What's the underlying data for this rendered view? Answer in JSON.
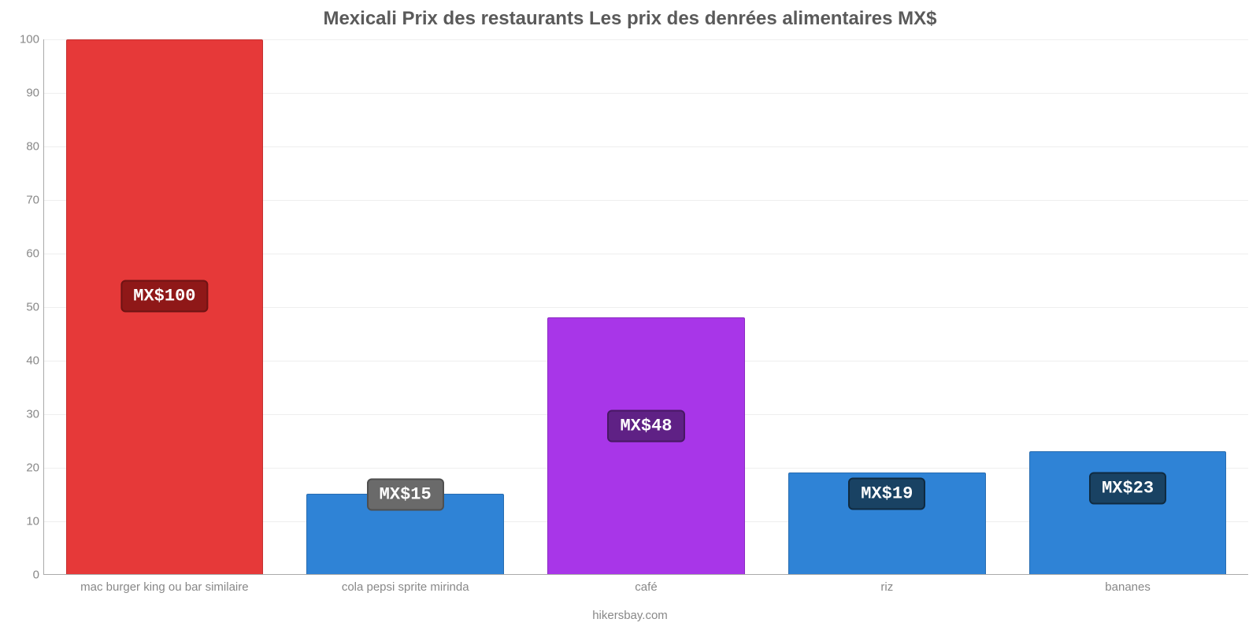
{
  "chart": {
    "type": "bar",
    "title": "Mexicali Prix des restaurants Les prix des denrées alimentaires MX$",
    "title_fontsize": 24,
    "title_color": "#5a5a5a",
    "caption": "hikersbay.com",
    "caption_fontsize": 15,
    "caption_color": "#888888",
    "background_color": "#ffffff",
    "plot": {
      "ylim": [
        0,
        100
      ],
      "ytick_step": 10,
      "grid_color": "#eeeeee",
      "axis_color": "#aaaaaa",
      "tick_label_color": "#888888",
      "tick_label_fontsize": 15
    },
    "bar_width_ratio": 0.82,
    "xlabel_fontsize": 15,
    "value_badge_fontsize": 22,
    "bars": [
      {
        "category": "mac burger king ou bar similaire",
        "value": 100,
        "value_label": "MX$100",
        "bar_color": "#e63939",
        "bar_border_color": "#c43030",
        "badge_bg": "#8f1818",
        "badge_border": "#6e1313",
        "badge_top_pct": 48
      },
      {
        "category": "cola pepsi sprite mirinda",
        "value": 15,
        "value_label": "MX$15",
        "bar_color": "#2f83d6",
        "bar_border_color": "#276cb0",
        "badge_bg": "#6a6a6a",
        "badge_border": "#4f4f4f",
        "badge_top_pct": 0
      },
      {
        "category": "café",
        "value": 48,
        "value_label": "MX$48",
        "bar_color": "#a836e8",
        "bar_border_color": "#8c2bc2",
        "badge_bg": "#5f2185",
        "badge_border": "#471863",
        "badge_top_pct": 42
      },
      {
        "category": "riz",
        "value": 19,
        "value_label": "MX$19",
        "bar_color": "#2f83d6",
        "bar_border_color": "#276cb0",
        "badge_bg": "#194263",
        "badge_border": "#0f2a40",
        "badge_top_pct": 20
      },
      {
        "category": "bananes",
        "value": 23,
        "value_label": "MX$23",
        "bar_color": "#2f83d6",
        "bar_border_color": "#276cb0",
        "badge_bg": "#194263",
        "badge_border": "#0f2a40",
        "badge_top_pct": 30
      }
    ],
    "yticks": [
      {
        "v": 0,
        "label": "0"
      },
      {
        "v": 10,
        "label": "10"
      },
      {
        "v": 20,
        "label": "20"
      },
      {
        "v": 30,
        "label": "30"
      },
      {
        "v": 40,
        "label": "40"
      },
      {
        "v": 50,
        "label": "50"
      },
      {
        "v": 60,
        "label": "60"
      },
      {
        "v": 70,
        "label": "70"
      },
      {
        "v": 80,
        "label": "80"
      },
      {
        "v": 90,
        "label": "90"
      },
      {
        "v": 100,
        "label": "100"
      }
    ]
  }
}
